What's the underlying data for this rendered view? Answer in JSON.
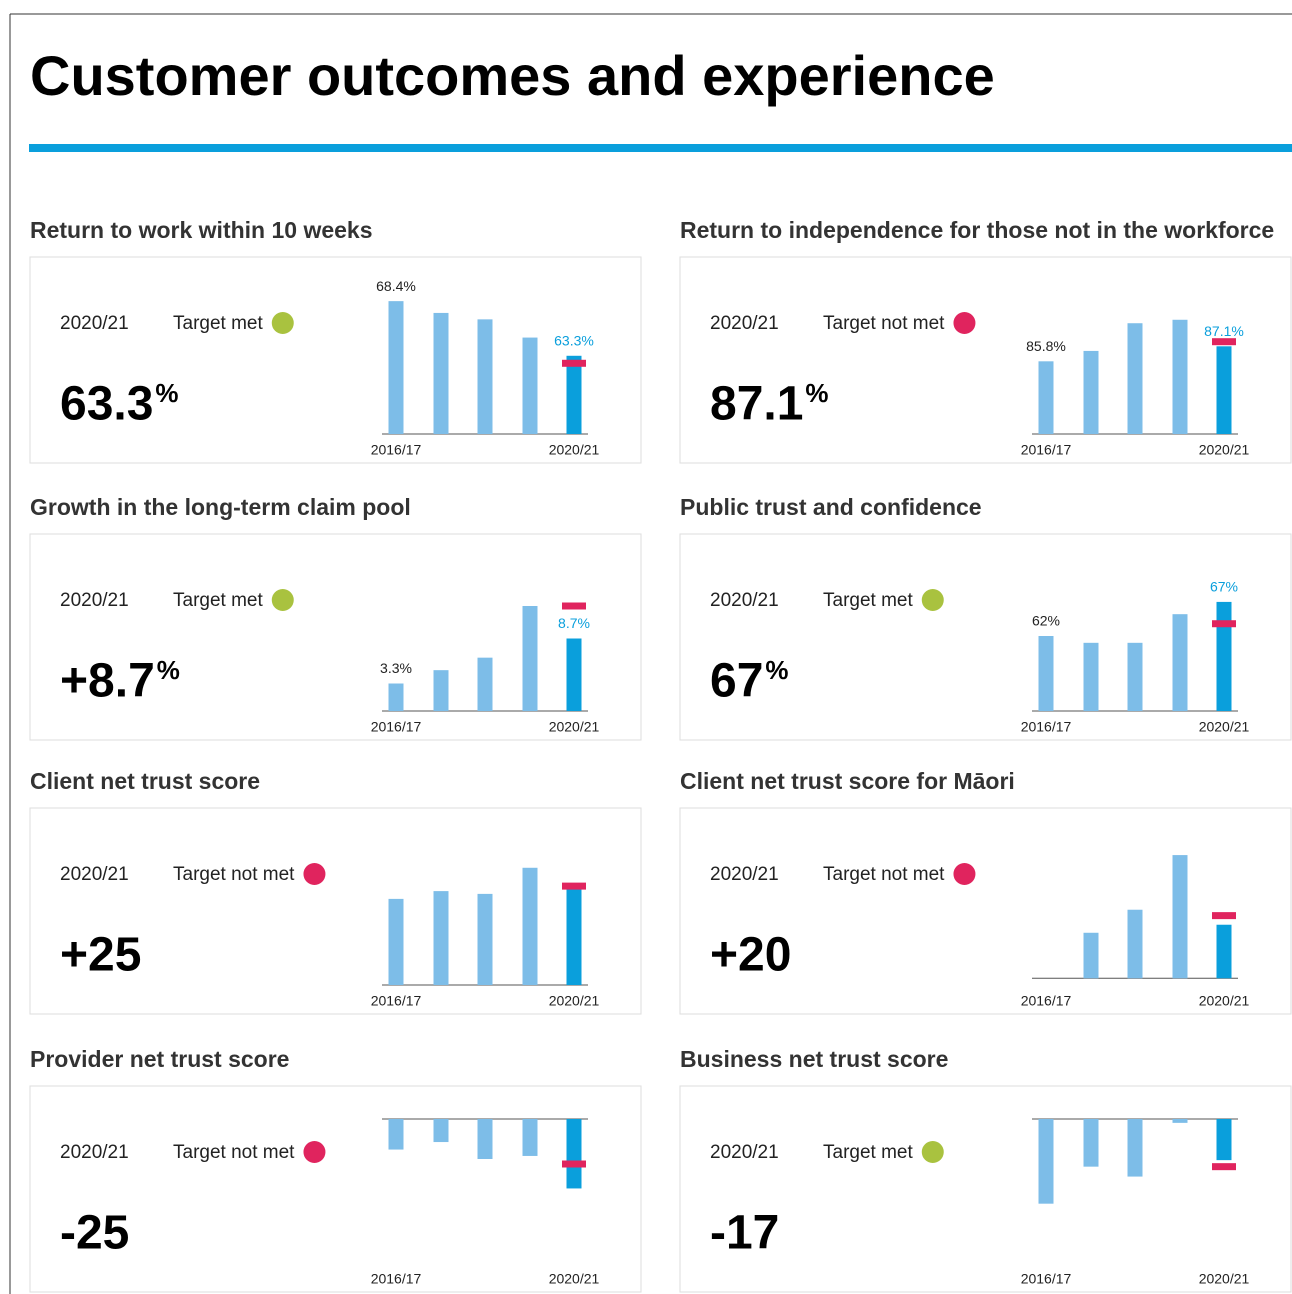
{
  "title": "Customer outcomes and experience",
  "chart_data": [
    {
      "type": "bar",
      "title": "Return to work within 10 weeks",
      "period": "2020/21",
      "status": "Target met",
      "status_color": "#a9c23f",
      "headline": "63.3",
      "headline_unit": "%",
      "categories": [
        "2016/17",
        null,
        null,
        null,
        "2020/21"
      ],
      "values": [
        68.4,
        67.3,
        66.7,
        65.0,
        63.3
      ],
      "value_labels": [
        "68.4%",
        null,
        null,
        null,
        "63.3%"
      ],
      "target": 62.6,
      "ylim": [
        56,
        70
      ],
      "color": "#7dbde8",
      "highlight_color": "#0a9fdc",
      "target_color": "#e0245e"
    },
    {
      "type": "bar",
      "title": "Return to independence for those not in the workforce",
      "period": "2020/21",
      "status": "Target not met",
      "status_color": "#e0245e",
      "headline": "87.1",
      "headline_unit": "%",
      "categories": [
        "2016/17",
        null,
        null,
        null,
        "2020/21"
      ],
      "values": [
        85.8,
        86.7,
        89.1,
        89.4,
        87.1
      ],
      "value_labels": [
        "85.8%",
        null,
        null,
        null,
        "87.1%"
      ],
      "target": 87.5,
      "ylim": [
        79.5,
        92.5
      ],
      "color": "#7dbde8",
      "highlight_color": "#0a9fdc",
      "target_color": "#e0245e"
    },
    {
      "type": "bar",
      "title": "Growth in the long-term claim pool",
      "period": "2020/21",
      "status": "Target met",
      "status_color": "#a9c23f",
      "headline": "+8.7",
      "headline_unit": "%",
      "categories": [
        "2016/17",
        null,
        null,
        null,
        "2020/21"
      ],
      "values": [
        3.3,
        4.9,
        6.4,
        12.6,
        8.7
      ],
      "value_labels": [
        "3.3%",
        null,
        null,
        null,
        "8.7%"
      ],
      "target": 12.6,
      "ylim": [
        0,
        18
      ],
      "color": "#7dbde8",
      "highlight_color": "#0a9fdc",
      "target_color": "#e0245e"
    },
    {
      "type": "bar",
      "title": "Public trust and confidence",
      "period": "2020/21",
      "status": "Target met",
      "status_color": "#a9c23f",
      "headline": "67",
      "headline_unit": "%",
      "categories": [
        "2016/17",
        null,
        null,
        null,
        "2020/21"
      ],
      "values": [
        62,
        61,
        61,
        65.2,
        67
      ],
      "value_labels": [
        "62%",
        null,
        null,
        null,
        "67%"
      ],
      "target": 63.8,
      "ylim": [
        51,
        73
      ],
      "color": "#7dbde8",
      "highlight_color": "#0a9fdc",
      "target_color": "#e0245e"
    },
    {
      "type": "bar",
      "title": "Client net trust score",
      "period": "2020/21",
      "status": "Target not met",
      "status_color": "#e0245e",
      "headline": "+25",
      "categories": [
        "2016/17",
        null,
        null,
        null,
        "2020/21"
      ],
      "values": [
        23,
        24.4,
        23.9,
        28.6,
        25
      ],
      "value_labels": [
        null,
        null,
        null,
        null,
        null
      ],
      "target": 25.3,
      "ylim": [
        7.5,
        34.5
      ],
      "color": "#7dbde8",
      "highlight_color": "#0a9fdc",
      "target_color": "#e0245e"
    },
    {
      "type": "bar",
      "title": "Client net trust score for Māori",
      "period": "2020/21",
      "status": "Target not met",
      "status_color": "#e0245e",
      "headline": "+20",
      "categories": [
        "2016/17",
        null,
        null,
        null,
        "2020/21"
      ],
      "values": [
        null,
        17,
        25.6,
        46,
        20
      ],
      "value_labels": [
        null,
        null,
        null,
        null,
        null
      ],
      "target": 23.4,
      "ylim": [
        -2.5,
        53.5
      ],
      "color": "#7dbde8",
      "highlight_color": "#0a9fdc",
      "target_color": "#e0245e"
    },
    {
      "type": "bar",
      "title": "Provider net trust score",
      "period": "2020/21",
      "status": "Target not met",
      "status_color": "#e0245e",
      "headline": "-25",
      "categories": [
        "2016/17",
        null,
        null,
        null,
        "2020/21"
      ],
      "values": [
        -11,
        -8.3,
        -14.4,
        -13.3,
        -25
      ],
      "value_labels": [
        null,
        null,
        null,
        null,
        null
      ],
      "target": -16.2,
      "ylim": [
        -54,
        0
      ],
      "color": "#7dbde8",
      "highlight_color": "#0a9fdc",
      "target_color": "#e0245e"
    },
    {
      "type": "bar",
      "title": "Business net trust score",
      "period": "2020/21",
      "status": "Target met",
      "status_color": "#a9c23f",
      "headline": "-17",
      "categories": [
        "2016/17",
        null,
        null,
        null,
        "2020/21"
      ],
      "values": [
        -35,
        -19.7,
        -23.8,
        -1.6,
        -17
      ],
      "value_labels": [
        null,
        null,
        null,
        null,
        null
      ],
      "target": -19.7,
      "ylim": [
        -62,
        0
      ],
      "color": "#7dbde8",
      "highlight_color": "#0a9fdc",
      "target_color": "#e0245e"
    }
  ]
}
